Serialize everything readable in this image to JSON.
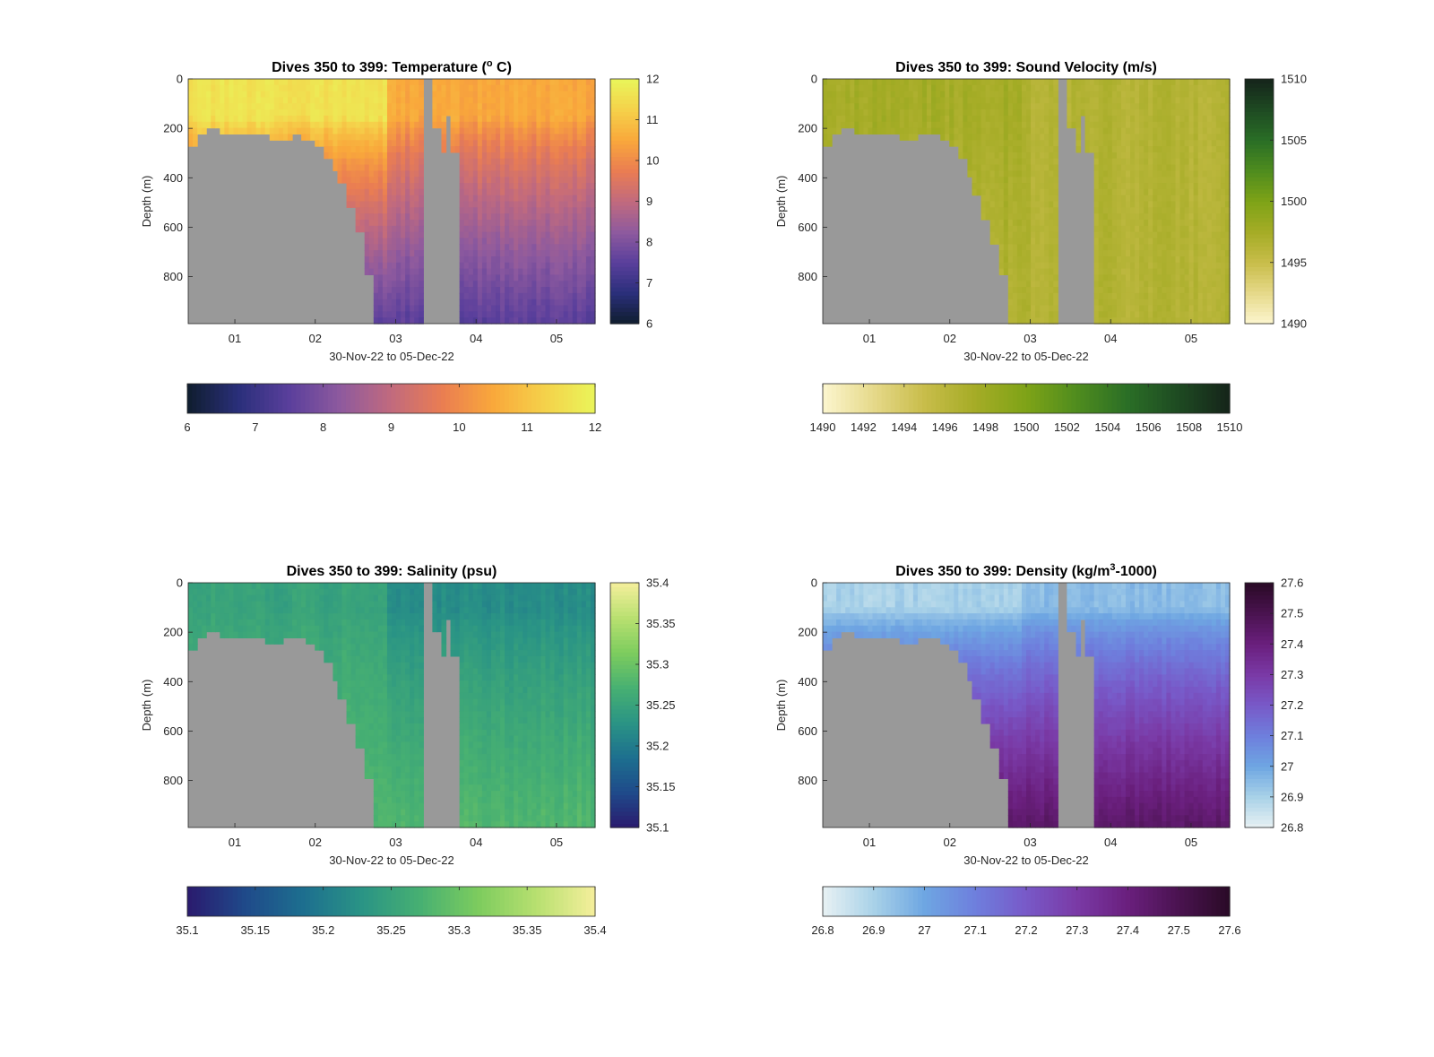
{
  "figure": {
    "background": "#ffffff",
    "land_color": "#999999"
  },
  "chart_data": [
    {
      "type": "heatmap",
      "title": "Dives 350 to 399: Temperature (° C)",
      "title_prefix": "Dives 350 to 399: Temperature (",
      "title_sup": "o",
      "title_suffix": " C)",
      "xlabel": "30-Nov-22 to 05-Dec-22",
      "ylabel": "Depth (m)",
      "x_ticks": [
        "01",
        "02",
        "03",
        "04",
        "05"
      ],
      "x_tick_days": [
        1,
        2,
        3,
        4,
        5
      ],
      "xlim": [
        0.42,
        5.48
      ],
      "y_ticks": [
        "0",
        "200",
        "400",
        "600",
        "800"
      ],
      "ylim": [
        0,
        990
      ],
      "y_reversed": true,
      "colorbar": {
        "ticks": [
          "6",
          "7",
          "8",
          "9",
          "10",
          "11",
          "12"
        ],
        "range": [
          6,
          12
        ]
      },
      "hcolorbar": {
        "ticks": [
          "6",
          "7",
          "8",
          "9",
          "10",
          "11",
          "12"
        ],
        "range": [
          6,
          12
        ]
      },
      "colormap": [
        "#0f1d2e",
        "#2a2f7a",
        "#5a3f9c",
        "#8e5a9e",
        "#c16a7e",
        "#ea7d52",
        "#f9a83b",
        "#f5d14a",
        "#e9f55a"
      ],
      "value_model": {
        "surface": 11.6,
        "surface_late": 10.5,
        "deep": 7.5,
        "mixed_depth": 160
      },
      "land_variant": "temp"
    },
    {
      "type": "heatmap",
      "title": "Dives 350 to 399: Sound Velocity (m/s)",
      "xlabel": "30-Nov-22 to 05-Dec-22",
      "ylabel": "Depth (m)",
      "x_ticks": [
        "01",
        "02",
        "03",
        "04",
        "05"
      ],
      "x_tick_days": [
        1,
        2,
        3,
        4,
        5
      ],
      "xlim": [
        0.42,
        5.48
      ],
      "y_ticks": [
        "0",
        "200",
        "400",
        "600",
        "800"
      ],
      "ylim": [
        0,
        990
      ],
      "y_reversed": true,
      "colorbar": {
        "ticks": [
          "1490",
          "1495",
          "1500",
          "1505",
          "1510"
        ],
        "range": [
          1490,
          1510
        ]
      },
      "hcolorbar": {
        "ticks": [
          "1490",
          "1492",
          "1494",
          "1496",
          "1498",
          "1500",
          "1502",
          "1504",
          "1506",
          "1508",
          "1510"
        ],
        "range": [
          1490,
          1510
        ]
      },
      "colormap": [
        "#fcf6cf",
        "#e6d98a",
        "#c8bd4a",
        "#a5ac26",
        "#7ea317",
        "#4f8c1e",
        "#2a6e26",
        "#1e4a22",
        "#15241a"
      ],
      "value_model": {
        "surface": 1497.5,
        "surface_late": 1496.5,
        "deep": 1496.5,
        "mixed_depth": 160
      },
      "land_variant": "other"
    },
    {
      "type": "heatmap",
      "title": "Dives 350 to 399: Salinity (psu)",
      "xlabel": "30-Nov-22 to 05-Dec-22",
      "ylabel": "Depth (m)",
      "x_ticks": [
        "01",
        "02",
        "03",
        "04",
        "05"
      ],
      "x_tick_days": [
        1,
        2,
        3,
        4,
        5
      ],
      "xlim": [
        0.42,
        5.48
      ],
      "y_ticks": [
        "0",
        "200",
        "400",
        "600",
        "800"
      ],
      "ylim": [
        0,
        990
      ],
      "y_reversed": true,
      "colorbar": {
        "ticks": [
          "35.1",
          "35.15",
          "35.2",
          "35.25",
          "35.3",
          "35.35",
          "35.4"
        ],
        "range": [
          35.1,
          35.4
        ]
      },
      "hcolorbar": {
        "ticks": [
          "35.1",
          "35.15",
          "35.2",
          "35.25",
          "35.3",
          "35.35",
          "35.4"
        ],
        "range": [
          35.1,
          35.4
        ]
      },
      "colormap": [
        "#2a1a6e",
        "#1f4a8a",
        "#1d6f8f",
        "#2a9485",
        "#47b072",
        "#7dcc5e",
        "#b8e070",
        "#f5ef9c"
      ],
      "value_model": {
        "surface": 35.25,
        "surface_late": 35.22,
        "deep": 35.28,
        "mixed_depth": 120
      },
      "land_variant": "other"
    },
    {
      "type": "heatmap",
      "title": "Dives 350 to 399: Density (kg/m³-1000)",
      "title_prefix": "Dives 350 to 399: Density (kg/m",
      "title_sup": "3",
      "title_suffix": "-1000)",
      "xlabel": "30-Nov-22 to 05-Dec-22",
      "ylabel": "Depth (m)",
      "x_ticks": [
        "01",
        "02",
        "03",
        "04",
        "05"
      ],
      "x_tick_days": [
        1,
        2,
        3,
        4,
        5
      ],
      "xlim": [
        0.42,
        5.48
      ],
      "y_ticks": [
        "0",
        "200",
        "400",
        "600",
        "800"
      ],
      "ylim": [
        0,
        990
      ],
      "y_reversed": true,
      "colorbar": {
        "ticks": [
          "26.8",
          "26.9",
          "27",
          "27.1",
          "27.2",
          "27.3",
          "27.4",
          "27.5",
          "27.6"
        ],
        "range": [
          26.8,
          27.6
        ]
      },
      "hcolorbar": {
        "ticks": [
          "26.8",
          "26.9",
          "27",
          "27.1",
          "27.2",
          "27.3",
          "27.4",
          "27.5",
          "27.6"
        ],
        "range": [
          26.8,
          27.6
        ]
      },
      "colormap": [
        "#e8f1f3",
        "#a9d2e8",
        "#6ea6e2",
        "#6e7fdd",
        "#7859c8",
        "#7a3aa6",
        "#6a1f7d",
        "#4a1350",
        "#2a0a26"
      ],
      "value_model": {
        "surface": 26.9,
        "surface_late": 26.95,
        "deep": 27.45,
        "mixed_depth": 110
      },
      "land_variant": "other"
    }
  ]
}
